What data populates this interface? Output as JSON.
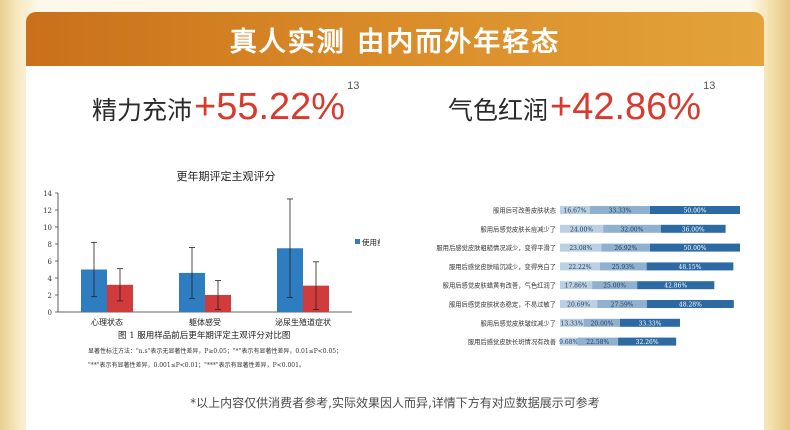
{
  "banner": {
    "title": "真人实测 由内而外年轻态"
  },
  "stats": [
    {
      "label": "精力充沛",
      "value": "+55.22%",
      "sup": "13"
    },
    {
      "label": "气色红润",
      "value": "+42.86%",
      "sup": "13"
    }
  ],
  "footnote": "*以上内容仅供消费者参考,实际效果因人而异,详情下方有对应数据展示可参考",
  "chart_data": [
    {
      "type": "bar",
      "title": "更年期评定主观评分",
      "categories": [
        "心理状态",
        "躯体感受",
        "泌尿生殖道症状"
      ],
      "series": [
        {
          "name": "使用前",
          "values": [
            5.0,
            4.6,
            7.5
          ],
          "errors": [
            3.2,
            3.0,
            5.8
          ],
          "color": "#2f7dc1"
        },
        {
          "values": [
            3.2,
            2.0,
            3.1
          ],
          "errors": [
            1.9,
            1.7,
            2.8
          ],
          "color": "#d23b3b"
        }
      ],
      "yticks": [
        "0",
        "2",
        "4",
        "6",
        "8",
        "10",
        "12",
        "14"
      ],
      "ylim": [
        0,
        14
      ],
      "legend_position": "right",
      "caption": "图 1 服用样品前后更年期评定主观评分对比图",
      "notes": [
        "显著性标注方法：\"n.s\"表示无显著性差异，P≥0.05；\"*\"表示有显著性差异，0.01≤P<0.05；",
        "\"**\"表示有显著性差异，0.001≤P<0.01；\"***\"表示有显著性差异，P<0.001。"
      ]
    },
    {
      "type": "bar",
      "orientation": "horizontal",
      "stacked": true,
      "categories": [
        "服用后可改善皮肤状态",
        "服用后感觉皮肤长痘减少了",
        "服用后感觉皮肤粗糙情况减少，变得平滑了",
        "服用后感觉皮肤暗沉减少，变得亮白了",
        "服用后感觉皮肤蜡黄有改善，气色红润了",
        "服用后感觉皮肤状态稳定，不易过敏了",
        "服用后感觉皮肤皱纹减少了",
        "服用后感觉皮肤长斑情况有改善"
      ],
      "segments": [
        [
          "16.67%",
          "33.33%",
          "50.00%"
        ],
        [
          "24.00%",
          "32.00%",
          "36.00%"
        ],
        [
          "23.08%",
          "26.92%",
          "50.00%"
        ],
        [
          "22.22%",
          "25.93%",
          "48.15%"
        ],
        [
          "17.86%",
          "25.00%",
          "42.86%"
        ],
        [
          "20.69%",
          "27.59%",
          "48.28%"
        ],
        [
          "13.33%",
          "20.00%",
          "33.33%"
        ],
        [
          "9.68%",
          "22.58%",
          "32.26%"
        ]
      ],
      "values": [
        [
          16.67,
          33.33,
          50.0
        ],
        [
          24.0,
          32.0,
          36.0
        ],
        [
          23.08,
          26.92,
          50.0
        ],
        [
          22.22,
          25.93,
          48.15
        ],
        [
          17.86,
          25.0,
          42.86
        ],
        [
          20.69,
          27.59,
          48.28
        ],
        [
          13.33,
          20.0,
          33.33
        ],
        [
          9.68,
          22.58,
          32.26
        ]
      ],
      "colors": [
        "#bcd0e3",
        "#8fb0cf",
        "#2d6aa3"
      ]
    }
  ]
}
